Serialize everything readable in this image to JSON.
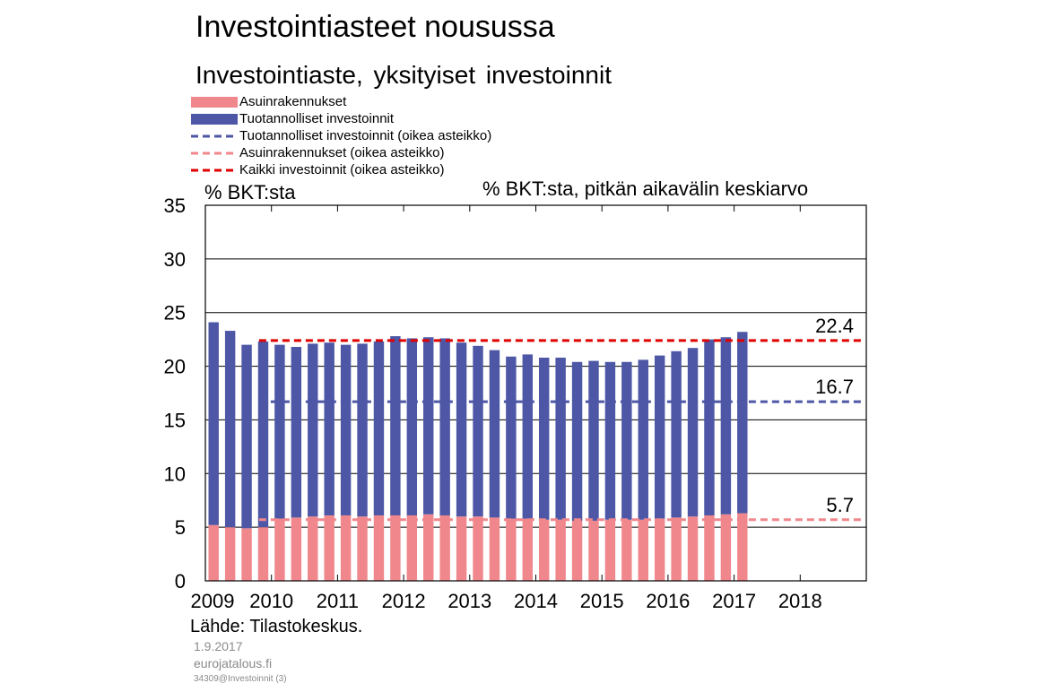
{
  "header": {
    "title": "Investointiasteet nousussa",
    "subtitle": "Investointiaste, yksityiset investoinnit"
  },
  "legend": [
    {
      "label": "Asuinrakennukset",
      "kind": "bar",
      "color": "#f0878c"
    },
    {
      "label": "Tuotannolliset investoinnit",
      "kind": "bar",
      "color": "#4d57a6"
    },
    {
      "label": "Tuotannolliset investoinnit (oikea asteikko)",
      "kind": "dashed",
      "color": "#4d57a6"
    },
    {
      "label": "Asuinrakennukset (oikea asteikko)",
      "kind": "dashed",
      "color": "#f0878c"
    },
    {
      "label": "Kaikki investoinnit (oikea asteikko)",
      "kind": "dashed",
      "color": "#e00000"
    }
  ],
  "axis_units": {
    "left": "% BKT:sta",
    "right": "% BKT:sta, pitkän aikavälin keskiarvo"
  },
  "footer": {
    "source": "Lähde: Tilastokeskus.",
    "date": "1.9.2017",
    "site": "eurojatalous.fi",
    "code": "34309@Investoinnit   (3)"
  },
  "chart_data": {
    "type": "bar",
    "stacked": true,
    "x_tick_labels": [
      "2009",
      "2010",
      "2011",
      "2012",
      "2013",
      "2014",
      "2015",
      "2016",
      "2017",
      "2018"
    ],
    "y_tick_labels": [
      "0",
      "5",
      "10",
      "15",
      "20",
      "25",
      "30",
      "35"
    ],
    "ylim": [
      0,
      35
    ],
    "y_ticks": [
      0,
      5,
      10,
      15,
      20,
      25,
      30,
      35
    ],
    "x_range_quarters": 40,
    "grid": "horizontal",
    "series": [
      {
        "name": "Asuinrakennukset",
        "color": "#f0878c",
        "values": [
          5.2,
          5.0,
          4.9,
          5.0,
          5.8,
          5.9,
          6.0,
          6.1,
          6.1,
          6.0,
          6.1,
          6.1,
          6.1,
          6.2,
          6.1,
          6.0,
          6.0,
          5.9,
          5.8,
          5.8,
          5.7,
          5.7,
          5.6,
          5.6,
          5.7,
          5.7,
          5.7,
          5.8,
          5.9,
          6.0,
          6.1,
          6.2,
          6.3
        ]
      },
      {
        "name": "Tuotannolliset investoinnit",
        "color": "#4d57a6",
        "values": [
          18.9,
          18.3,
          17.1,
          17.3,
          16.2,
          15.9,
          16.1,
          16.1,
          15.9,
          16.1,
          16.2,
          16.7,
          16.5,
          16.5,
          16.5,
          16.2,
          15.9,
          15.6,
          15.1,
          15.3,
          15.1,
          15.1,
          14.8,
          14.9,
          14.7,
          14.7,
          14.9,
          15.2,
          15.5,
          15.7,
          16.4,
          16.5,
          16.9
        ]
      }
    ],
    "reference_lines": [
      {
        "name": "Kaikki investoinnit (oikea asteikko)",
        "value": 22.4,
        "label": "22.4",
        "color": "#e00000",
        "from_quarter": 4
      },
      {
        "name": "Tuotannolliset investoinnit (oikea asteikko)",
        "value": 16.7,
        "label": "16.7",
        "color": "#4d57a6",
        "from_quarter": 4
      },
      {
        "name": "Asuinrakennukset (oikea asteikko)",
        "value": 5.7,
        "label": "5.7",
        "color": "#f0878c",
        "from_quarter": 4
      }
    ]
  }
}
